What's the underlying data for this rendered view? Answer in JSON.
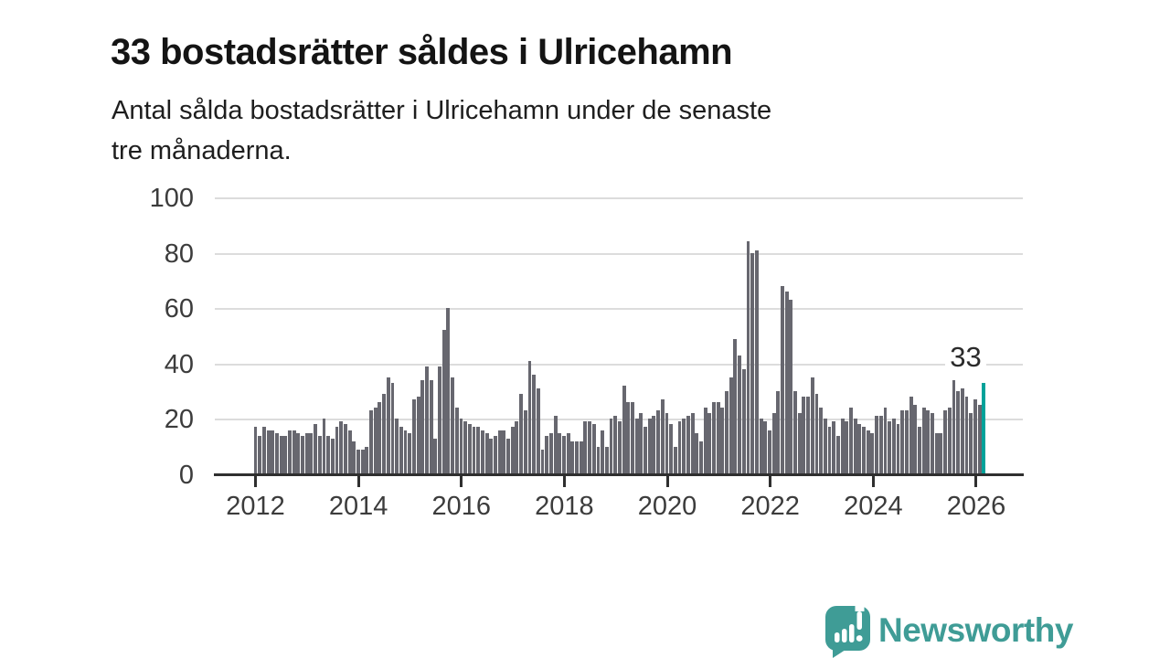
{
  "header": {
    "title": "33 bostadsrätter såldes i Ulricehamn",
    "subtitle_lines": [
      "Antal sålda bostadsrätter i Ulricehamn under de senaste",
      "tre månaderna."
    ]
  },
  "chart_data": {
    "type": "bar",
    "title": "33 bostadsrätter såldes i Ulricehamn",
    "x_start": "2012-01",
    "x_end": "2026-03",
    "x_tick_labels": [
      "2012",
      "2014",
      "2016",
      "2018",
      "2020",
      "2022",
      "2024",
      "2026"
    ],
    "y_ticks": [
      0,
      20,
      40,
      60,
      80,
      100
    ],
    "y_tick_labels": [
      "0",
      "20",
      "40",
      "60",
      "80",
      "100"
    ],
    "ylim": [
      0,
      100
    ],
    "grid": true,
    "legend": "none",
    "annotation_last_value": "33",
    "values": [
      17,
      14,
      17,
      16,
      16,
      15,
      14,
      14,
      16,
      16,
      15,
      14,
      15,
      15,
      18,
      14,
      20,
      14,
      13,
      17,
      19,
      18,
      16,
      12,
      9,
      9,
      10,
      23,
      24,
      26,
      29,
      35,
      33,
      20,
      17,
      16,
      15,
      27,
      28,
      34,
      39,
      34,
      13,
      39,
      52,
      60,
      35,
      24,
      20,
      19,
      18,
      17,
      17,
      16,
      15,
      13,
      14,
      16,
      16,
      13,
      17,
      19,
      29,
      23,
      41,
      36,
      31,
      9,
      14,
      15,
      21,
      15,
      14,
      15,
      12,
      12,
      12,
      19,
      19,
      18,
      10,
      16,
      10,
      20,
      21,
      19,
      32,
      26,
      26,
      20,
      22,
      17,
      20,
      21,
      23,
      27,
      22,
      18,
      10,
      19,
      20,
      21,
      22,
      15,
      12,
      24,
      22,
      26,
      26,
      24,
      30,
      35,
      49,
      43,
      38,
      84,
      80,
      81,
      20,
      19,
      16,
      22,
      30,
      68,
      66,
      63,
      30,
      22,
      28,
      28,
      35,
      29,
      24,
      20,
      17,
      19,
      14,
      20,
      19,
      24,
      20,
      18,
      17,
      16,
      15,
      21,
      21,
      24,
      19,
      20,
      18,
      23,
      23,
      28,
      25,
      17,
      24,
      23,
      22,
      15,
      15,
      23,
      24,
      34,
      30,
      31,
      28,
      22,
      27,
      25,
      33
    ],
    "highlight_last": true,
    "colors": {
      "bar": "#67676f",
      "highlight": "#00a29a",
      "gridline": "#dcdcdc",
      "axis": "#2f2f2f",
      "axis_text": "#3c3c3c",
      "annotation_text": "#2b2b2b"
    }
  },
  "footer": {
    "brand": "Newsworthy",
    "brand_color": "#3f9c96"
  }
}
